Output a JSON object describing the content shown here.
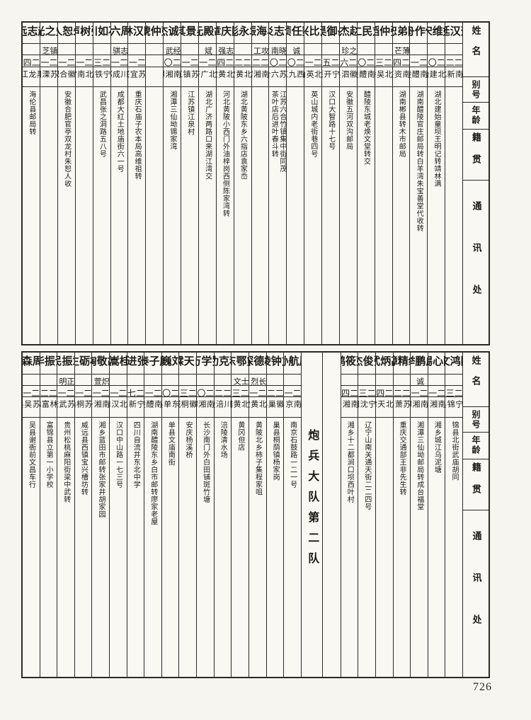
{
  "page": {
    "number": "726"
  },
  "colors": {
    "paper": "#f7f5ef",
    "ink": "#1c1b19",
    "border": "#2b2a27"
  },
  "headers": {
    "name": "姓名",
    "alias": "别号",
    "age": "年龄",
    "origin": "籍贯",
    "address": "通讯处"
  },
  "tables": [
    {
      "id": "top",
      "entries": [
        {
          "type": "person",
          "name": "萧汉廷",
          "alias": "",
          "age": "二二",
          "origin": "湖南新化",
          "address": ""
        },
        {
          "type": "person",
          "name": "姚维宋",
          "alias": "",
          "age": "二〇",
          "origin": "湖北建始",
          "address": "湖北建始童坝王明记转靖林满"
        },
        {
          "type": "person",
          "name": "傅作舟",
          "alias": "",
          "age": "二一",
          "origin": "湖南醴陵",
          "address": "湖南醴陵官庄邮局转白羊湾朱宝善堂代收转"
        },
        {
          "type": "person",
          "name": "陈弟恕",
          "alias": "薄芒",
          "age": "二四",
          "origin": "湖南资兴",
          "address": "湖南郴县转木市邮局"
        },
        {
          "type": "person",
          "name": "张仲韬",
          "alias": "",
          "age": "二三",
          "origin": "湖北吴桥",
          "address": ""
        },
        {
          "type": "person",
          "name": "刘民仁",
          "alias": "",
          "age": "二〇",
          "origin": "湖南醴陵",
          "address": "醴陵东城老焕文堂转交"
        },
        {
          "type": "person",
          "name": "赵杰",
          "alias": "之珍",
          "age": "二六",
          "origin": "安徽泗县",
          "address": "安徽五河双沟邮局"
        },
        {
          "type": "person",
          "name": "岳御昊",
          "alias": "",
          "age": "二五",
          "origin": "辽宁开原",
          "address": "汉口大智路十七号"
        },
        {
          "type": "person",
          "name": "沈比兴",
          "alias": "",
          "age": "二一",
          "origin": "湖北英山",
          "address": "英山城内老街巷四号"
        },
        {
          "type": "person",
          "name": "魏任桢",
          "alias": "诚",
          "age": "二〇",
          "origin": "江西九江",
          "address": ""
        },
        {
          "type": "person",
          "name": "谈志炎",
          "alias": "晓南",
          "age": "二〇",
          "origin": "江苏六合",
          "address": "江苏六合竹镇集中街同茂\n茶叶店后进叶春斗转"
        },
        {
          "type": "person",
          "name": "马海振",
          "alias": "攻工",
          "age": "二二",
          "origin": "湖南湘潭",
          "address": ""
        },
        {
          "type": "person",
          "name": "袁永彪",
          "alias": "",
          "age": "二二",
          "origin": "湖北黄陂",
          "address": "湖北黄陂东乡六指店袁家岙"
        },
        {
          "type": "person",
          "name": "陈庆章",
          "alias": "志强",
          "age": "二四",
          "origin": "湖北黄陂",
          "address": "河北黄陂小西门外油梓岗西侧陈家湾转"
        },
        {
          "type": "person",
          "name": "胡殿元",
          "alias": "斌",
          "age": "二一",
          "origin": "湖北广济",
          "address": "湖北广济两路口来湖江湾交"
        },
        {
          "type": "person",
          "name": "吴景其",
          "alias": "",
          "age": "二一",
          "origin": "江苏镇江",
          "address": "江苏镇江泉村"
        },
        {
          "type": "person",
          "name": "李诚杰",
          "alias": "经武",
          "age": "二〇",
          "origin": "湖南湘潭",
          "address": "湘潭三仙坳锡家湾"
        },
        {
          "type": "person",
          "name": "彭仲琥",
          "alias": "",
          "age": "",
          "origin": "",
          "address": ""
        },
        {
          "type": "person",
          "name": "匡汉林",
          "alias": "",
          "age": "二一",
          "origin": "江苏宜兴",
          "address": "重庆石庙子农本局高维祖转"
        },
        {
          "type": "person",
          "name": "周六",
          "alias": "志骐",
          "age": "二一",
          "origin": "四川成都",
          "address": "成都大红土地庙街六一号"
        },
        {
          "type": "person",
          "name": "石如川",
          "alias": "",
          "age": "二三",
          "origin": "辽宁铁镇",
          "address": "武昌张之洞路五八号"
        },
        {
          "type": "person",
          "name": "张树声",
          "alias": "",
          "age": "二一",
          "origin": "河北南宫",
          "address": ""
        },
        {
          "type": "person",
          "name": "朱恕人",
          "alias": "",
          "age": "二一",
          "origin": "安徽合肥",
          "address": "安徽合肥官亭双龙村朱恕人收"
        },
        {
          "type": "person",
          "name": "史之光",
          "alias": "镇芝",
          "age": "二一",
          "origin": "江苏溧阳",
          "address": ""
        },
        {
          "type": "person",
          "name": "赵志远",
          "alias": "",
          "age": "二四",
          "origin": "黑龙江",
          "address": "海伦县邮局转"
        }
      ]
    },
    {
      "id": "bottom",
      "entries": [
        {
          "type": "person",
          "name": "陈鸿文",
          "alias": "",
          "age": "二三",
          "origin": "辽宁锦县",
          "address": "锦县北街武庙胡同"
        },
        {
          "type": "person",
          "name": "陈心惕",
          "alias": "",
          "age": "二一",
          "origin": "湖南湘乡",
          "address": "湘乡城江乌泥塘"
        },
        {
          "type": "person",
          "name": "成鹏举",
          "alias": "诚",
          "age": "二一",
          "origin": "湖南湘潭",
          "address": "湘潭三仙坳邮局转成台福堂"
        },
        {
          "type": "person",
          "name": "纵精璋",
          "alias": "",
          "age": "二二",
          "origin": "江苏萧县",
          "address": "重庆交通部王非先生转"
        },
        {
          "type": "person",
          "name": "高炳武",
          "alias": "",
          "age": "二四",
          "origin": "河北天津",
          "address": ""
        },
        {
          "type": "person",
          "name": "张俊杰",
          "alias": "",
          "age": "二三",
          "origin": "辽宁沈阳",
          "address": "辽宁山南关通天街二二四号"
        },
        {
          "type": "person",
          "name": "彭筱鹤",
          "alias": "",
          "age": "二四",
          "origin": "湖南湘乡",
          "address": "湘乡十二都涧口坝西叶村"
        },
        {
          "type": "divider",
          "label": "",
          "wide": false
        },
        {
          "type": "divider",
          "label": "炮兵大队第二队",
          "wide": true
        },
        {
          "type": "person",
          "name": "周航孙",
          "alias": "",
          "age": "二一",
          "origin": "南京",
          "address": "南京石鼓路一二一号"
        },
        {
          "type": "person",
          "name": "方钟陵",
          "alias": "",
          "age": "二二",
          "origin": "安徽巢县",
          "address": "巢县桐荫镇杨家岗"
        },
        {
          "type": "person",
          "name": "柳德深",
          "alias": "长烈",
          "age": "二一",
          "origin": "湖北黄陂",
          "address": "黄陂北乡柿子集程家咀"
        },
        {
          "type": "person",
          "name": "熊鄂东",
          "alias": "士文",
          "age": "二三",
          "origin": "湖北黄冈",
          "address": "黄冈但店"
        },
        {
          "type": "person",
          "name": "程克功",
          "alias": "",
          "age": "二二",
          "origin": "四川涪陵",
          "address": "涪陵清水场"
        },
        {
          "type": "person",
          "name": "罗学万",
          "alias": "",
          "age": "二〇",
          "origin": "湖南湘潭",
          "address": "长沙南门外白田铺斑竹塘"
        },
        {
          "type": "person",
          "name": "白天霖",
          "alias": "",
          "age": "二三",
          "origin": "安徽桐城",
          "address": "安庆杨溪桥"
        },
        {
          "type": "person",
          "name": "刘巍",
          "alias": "",
          "age": "二〇",
          "origin": "山东单县",
          "address": "单县文庙南街"
        },
        {
          "type": "person",
          "name": "廖子秦",
          "alias": "",
          "age": "二一",
          "origin": "湖南醴陵",
          "address": "湖南醴陵东乡白市邮转廖家老屋"
        },
        {
          "type": "person",
          "name": "张进",
          "alias": "",
          "age": "二七",
          "origin": "辽宁新民",
          "address": "四川自流井东北中学"
        },
        {
          "type": "person",
          "name": "桂嵩",
          "alias": "",
          "age": "二一",
          "origin": "湖北汉口",
          "address": "汉口中山路一七三号"
        },
        {
          "type": "person",
          "name": "胡敬陶",
          "alias": "炽萱",
          "age": "二一",
          "origin": "湖南湘乡",
          "address": "湘乡蓝田市邮转张家井胡家园"
        },
        {
          "type": "person",
          "name": "杜砺生",
          "alias": "",
          "age": "二一",
          "origin": "江苏桐山",
          "address": "威远县西镇宝兴槽坊转"
        },
        {
          "type": "person",
          "name": "章振民",
          "alias": "正明",
          "age": "二一",
          "origin": "江苏武进",
          "address": "贵州松桃麻阳街梁中武转"
        },
        {
          "type": "person",
          "name": "谢振华",
          "alias": "",
          "age": "二二",
          "origin": "吉林富锦",
          "address": "富锦县立第一小学校"
        },
        {
          "type": "person",
          "name": "周森",
          "alias": "",
          "age": "二一",
          "origin": "江苏吴县",
          "address": "吴县谢衙前文昌车行"
        }
      ]
    }
  ]
}
